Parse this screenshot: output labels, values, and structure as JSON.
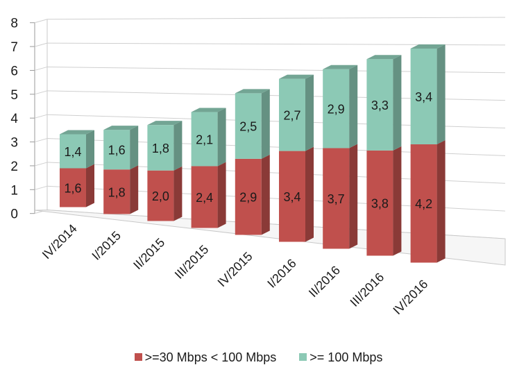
{
  "chart_data": {
    "type": "bar",
    "stacked": true,
    "three_d": true,
    "title": "",
    "xlabel": "",
    "ylabel": "",
    "ylim": [
      0,
      8
    ],
    "yticks": [
      "0",
      "1",
      "2",
      "3",
      "4",
      "5",
      "6",
      "7",
      "8"
    ],
    "categories": [
      "IV/2014",
      "I/2015",
      "II/2015",
      "III/2015",
      "IV/2015",
      "I/2016",
      "II/2016",
      "III/2016",
      "IV/2016"
    ],
    "series": [
      {
        "name": ">=30 Mbps < 100 Mbps",
        "color": "#c0504d",
        "values": [
          1.6,
          1.8,
          2.0,
          2.4,
          2.9,
          3.4,
          3.7,
          3.8,
          4.2
        ],
        "labels": [
          "1,6",
          "1,8",
          "2,0",
          "2,4",
          "2,9",
          "3,4",
          "3,7",
          "3,8",
          "4,2"
        ]
      },
      {
        "name": ">= 100 Mbps",
        "color": "#8cc9b5",
        "values": [
          1.4,
          1.6,
          1.8,
          2.1,
          2.5,
          2.7,
          2.9,
          3.3,
          3.4
        ],
        "labels": [
          "1,4",
          "1,6",
          "1,8",
          "2,1",
          "2,5",
          "2,7",
          "2,9",
          "3,3",
          "3,4"
        ]
      }
    ],
    "grid": true,
    "legend_position": "bottom"
  }
}
